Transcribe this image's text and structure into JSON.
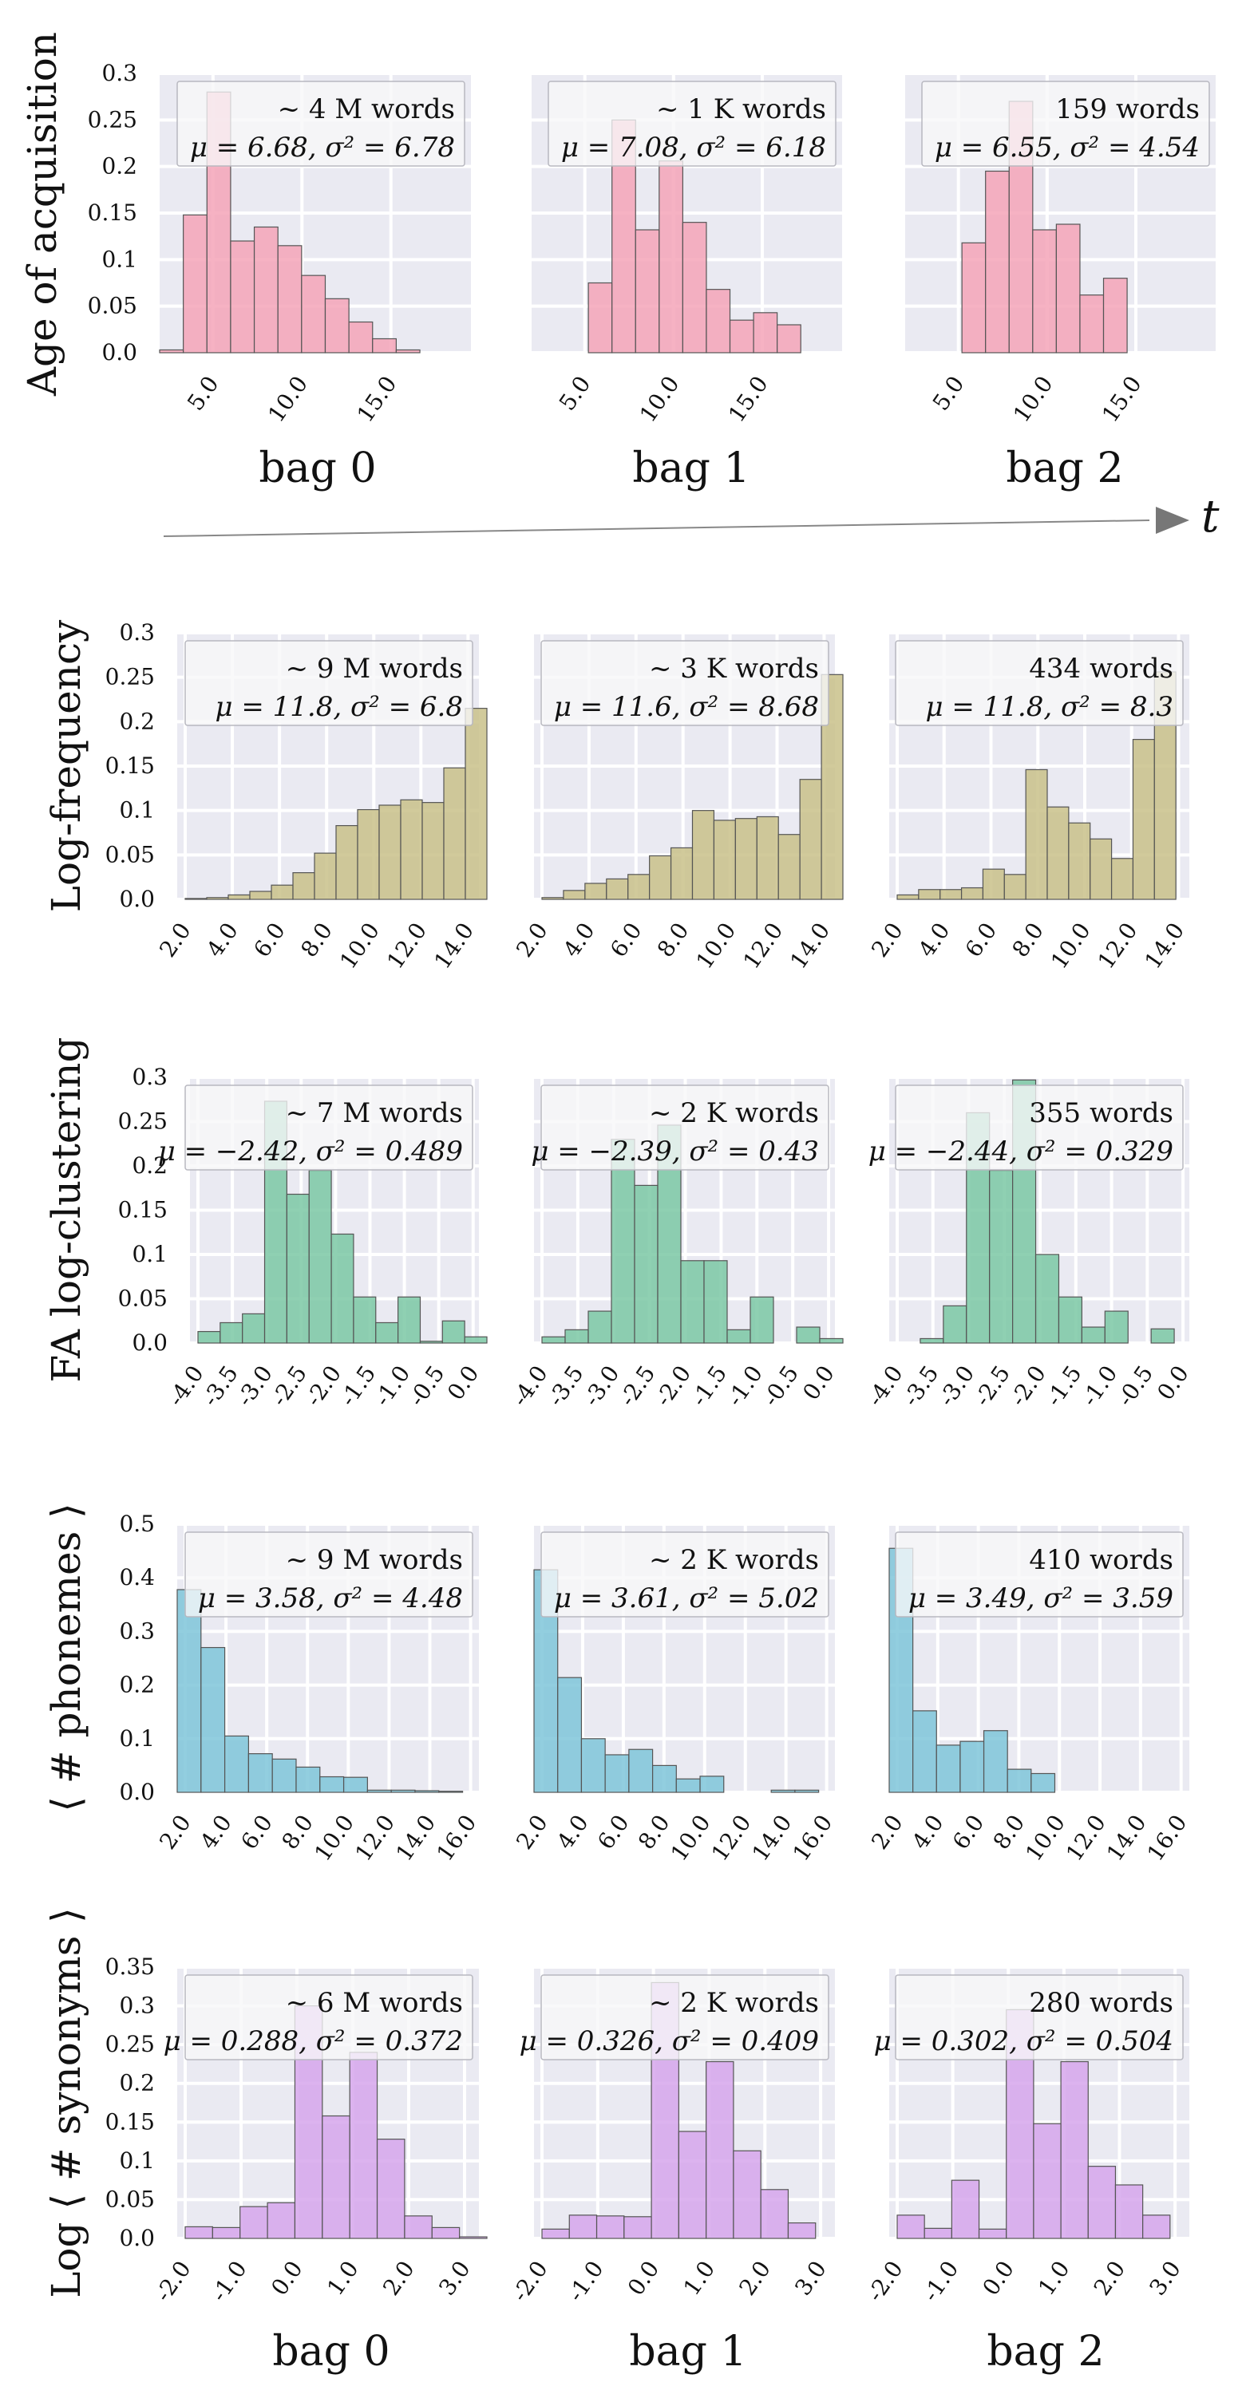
{
  "bag_labels_top": [
    "bag 0",
    "bag 1",
    "bag 2"
  ],
  "bag_labels_bottom": [
    "bag 0",
    "bag 1",
    "bag 2"
  ],
  "time_label": "t",
  "colors": {
    "panel_bg": "#eaeaf2",
    "grid": "#ffffff",
    "bar_edge": "#555555"
  },
  "chart_data": [
    {
      "type": "bar",
      "ylabel": "Age of acquisition",
      "color": "#f4a5b8",
      "yticks": [
        "0.0",
        "0.05",
        "0.1",
        "0.15",
        "0.2",
        "0.25",
        "0.3"
      ],
      "ylim": [
        0,
        0.3
      ],
      "xticks": [
        "5.0",
        "10.0",
        "15.0"
      ],
      "bin_edges": [
        2,
        3.33,
        4.67,
        6,
        7.33,
        8.67,
        10,
        11.33,
        12.67,
        14,
        15.33
      ],
      "panels": [
        {
          "title": "~ 4 M words",
          "stats": "μ = 6.68, σ² = 6.78",
          "values": [
            0.003,
            0.148,
            0.28,
            0.12,
            0.135,
            0.115,
            0.083,
            0.058,
            0.033,
            0.015,
            0.003
          ]
        },
        {
          "title": "~ 1 K words",
          "stats": "μ = 7.08, σ² = 6.18",
          "values": [
            0.075,
            0.25,
            0.132,
            0.206,
            0.14,
            0.068,
            0.035,
            0.043,
            0.03
          ]
        },
        {
          "title": "159 words",
          "stats": "μ = 6.55, σ² = 4.54",
          "values": [
            0.118,
            0.195,
            0.27,
            0.132,
            0.138,
            0.062,
            0.08
          ]
        }
      ]
    },
    {
      "type": "bar",
      "ylabel": "Log-frequency",
      "color": "#c9c189",
      "yticks": [
        "0.0",
        "0.05",
        "0.1",
        "0.15",
        "0.2",
        "0.25",
        "0.3"
      ],
      "ylim": [
        0,
        0.3
      ],
      "xticks": [
        "2.0",
        "4.0",
        "6.0",
        "8.0",
        "10.0",
        "12.0",
        "14.0"
      ],
      "panels": [
        {
          "title": "~ 9 M words",
          "stats": "μ = 11.8, σ² = 6.8",
          "values": [
            0.001,
            0.002,
            0.005,
            0.009,
            0.016,
            0.03,
            0.052,
            0.083,
            0.101,
            0.106,
            0.112,
            0.109,
            0.148,
            0.215
          ]
        },
        {
          "title": "~ 3 K words",
          "stats": "μ = 11.6, σ² = 8.68",
          "values": [
            0.002,
            0.01,
            0.018,
            0.023,
            0.028,
            0.049,
            0.058,
            0.1,
            0.089,
            0.091,
            0.093,
            0.073,
            0.135,
            0.253
          ]
        },
        {
          "title": "434 words",
          "stats": "μ = 11.8, σ² = 8.3",
          "values": [
            0.005,
            0.011,
            0.011,
            0.013,
            0.034,
            0.028,
            0.146,
            0.104,
            0.086,
            0.068,
            0.046,
            0.18,
            0.256
          ]
        }
      ]
    },
    {
      "type": "bar",
      "ylabel": "FA log-clustering",
      "color": "#7bc8a4",
      "yticks": [
        "0.0",
        "0.05",
        "0.1",
        "0.15",
        "0.2",
        "0.25",
        "0.3"
      ],
      "ylim": [
        0,
        0.3
      ],
      "xticks": [
        "-4.0",
        "-3.5",
        "-3.0",
        "-2.5",
        "-2.0",
        "-1.5",
        "-1.0",
        "-0.5",
        "0.0"
      ],
      "panels": [
        {
          "title": "~ 7 M words",
          "stats": "μ = −2.42, σ² = 0.489",
          "values": [
            0.013,
            0.023,
            0.033,
            0.273,
            0.168,
            0.195,
            0.123,
            0.052,
            0.023,
            0.052,
            0.002,
            0.025,
            0.007
          ]
        },
        {
          "title": "~ 2 K words",
          "stats": "μ = −2.39, σ² = 0.43",
          "values": [
            0.007,
            0.015,
            0.036,
            0.23,
            0.178,
            0.246,
            0.093,
            0.093,
            0.015,
            0.052,
            0.0,
            0.018,
            0.005
          ]
        },
        {
          "title": "355 words",
          "stats": "μ = −2.44, σ² = 0.329",
          "values": [
            0.0,
            0.005,
            0.042,
            0.26,
            0.195,
            0.297,
            0.1,
            0.052,
            0.018,
            0.036,
            0.0,
            0.016
          ]
        }
      ]
    },
    {
      "type": "bar",
      "ylabel": "⟨ # phonemes ⟩",
      "color": "#7fc6d9",
      "yticks": [
        "0.0",
        "0.1",
        "0.2",
        "0.3",
        "0.4",
        "0.5"
      ],
      "ylim": [
        0,
        0.5
      ],
      "xticks": [
        "2.0",
        "4.0",
        "6.0",
        "8.0",
        "10.0",
        "12.0",
        "14.0",
        "16.0"
      ],
      "panels": [
        {
          "title": "~ 9 M words",
          "stats": "μ = 3.58, σ² = 4.48",
          "values": [
            0.378,
            0.27,
            0.105,
            0.072,
            0.062,
            0.047,
            0.029,
            0.028,
            0.004,
            0.004,
            0.003,
            0.002
          ]
        },
        {
          "title": "~ 2 K words",
          "stats": "μ = 3.61, σ² = 5.02",
          "values": [
            0.415,
            0.214,
            0.1,
            0.07,
            0.08,
            0.05,
            0.025,
            0.03,
            0.0,
            0.0,
            0.004,
            0.004
          ]
        },
        {
          "title": "410 words",
          "stats": "μ = 3.49, σ² = 3.59",
          "values": [
            0.455,
            0.152,
            0.088,
            0.095,
            0.115,
            0.043,
            0.035
          ]
        }
      ]
    },
    {
      "type": "bar",
      "ylabel": "Log ⟨ # synonyms ⟩",
      "color": "#d6a6ec",
      "yticks": [
        "0.0",
        "0.05",
        "0.1",
        "0.15",
        "0.2",
        "0.25",
        "0.3",
        "0.35"
      ],
      "ylim": [
        0,
        0.35
      ],
      "xticks": [
        "-2.0",
        "-1.0",
        "0.0",
        "1.0",
        "2.0",
        "3.0"
      ],
      "panels": [
        {
          "title": "~ 6 M words",
          "stats": "μ = 0.288, σ² = 0.372",
          "values": [
            0.015,
            0.014,
            0.041,
            0.046,
            0.3,
            0.158,
            0.24,
            0.128,
            0.029,
            0.014,
            0.002
          ]
        },
        {
          "title": "~ 2 K words",
          "stats": "μ = 0.326, σ² = 0.409",
          "values": [
            0.012,
            0.03,
            0.029,
            0.028,
            0.33,
            0.138,
            0.228,
            0.113,
            0.063,
            0.02
          ]
        },
        {
          "title": "280 words",
          "stats": "μ = 0.302, σ² = 0.504",
          "values": [
            0.03,
            0.013,
            0.075,
            0.012,
            0.295,
            0.148,
            0.228,
            0.093,
            0.069,
            0.03
          ]
        }
      ]
    }
  ]
}
